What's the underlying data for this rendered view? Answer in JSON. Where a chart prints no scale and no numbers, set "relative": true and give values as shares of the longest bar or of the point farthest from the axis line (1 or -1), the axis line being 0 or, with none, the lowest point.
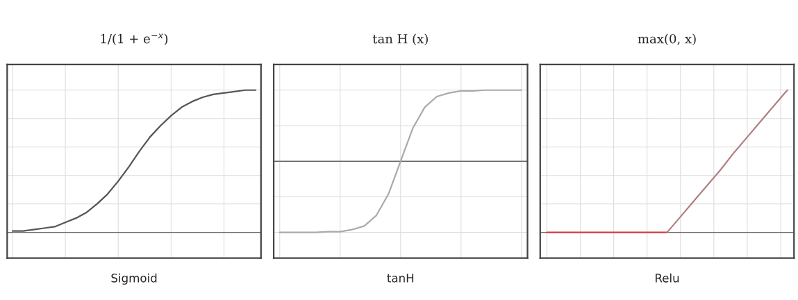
{
  "chart_data": [
    {
      "type": "line",
      "title": "1/(1 + e$^{−x}$)",
      "xlabel": "Sigmoid",
      "relative": true,
      "grid": true,
      "tick_labels": false,
      "categories": [
        null,
        null,
        null,
        null,
        null,
        null,
        null,
        null,
        null,
        null,
        null,
        null,
        null,
        null,
        null,
        null,
        null,
        null,
        null,
        null,
        null,
        null,
        null,
        null
      ],
      "series": [
        {
          "color": "#555555",
          "values": [
            0.01,
            0.01,
            0.02,
            0.03,
            0.04,
            0.07,
            0.1,
            0.14,
            0.2,
            0.27,
            0.36,
            0.46,
            0.57,
            0.67,
            0.75,
            0.82,
            0.88,
            0.92,
            0.95,
            0.97,
            0.98,
            0.99,
            1.0,
            1.0
          ]
        }
      ]
    },
    {
      "type": "line",
      "title": "tan H (x)",
      "xlabel": "tanH",
      "relative": true,
      "grid": true,
      "tick_labels": false,
      "categories": [
        null,
        null,
        null,
        null,
        null,
        null,
        null,
        null,
        null,
        null,
        null,
        null,
        null,
        null,
        null,
        null,
        null,
        null,
        null,
        null,
        null
      ],
      "series": [
        {
          "color": "#aaaaaa",
          "values": [
            -1.0,
            -1.0,
            -1.0,
            -1.0,
            -0.99,
            -0.99,
            -0.96,
            -0.91,
            -0.76,
            -0.46,
            0,
            0.46,
            0.76,
            0.91,
            0.96,
            0.99,
            0.99,
            1.0,
            1.0,
            1.0,
            1.0
          ]
        }
      ]
    },
    {
      "type": "line",
      "title": "max(0, x)",
      "xlabel": "Relu",
      "relative": true,
      "grid": true,
      "tick_labels": false,
      "categories": [
        null,
        null,
        null,
        null,
        null,
        null,
        null,
        null,
        null,
        null,
        null,
        null,
        null,
        null,
        null,
        null,
        null,
        null,
        null
      ],
      "series": [
        {
          "color": "#d04040",
          "values": [
            0,
            0,
            0,
            0,
            0,
            0,
            0,
            0,
            0,
            0,
            null,
            null,
            null,
            null,
            null,
            null,
            null,
            null,
            null
          ]
        },
        {
          "color": "#b08080",
          "values": [
            null,
            null,
            null,
            null,
            null,
            null,
            null,
            null,
            null,
            0,
            0.11,
            0.22,
            0.33,
            0.44,
            0.56,
            0.67,
            0.78,
            0.89,
            1.0
          ]
        }
      ]
    }
  ]
}
